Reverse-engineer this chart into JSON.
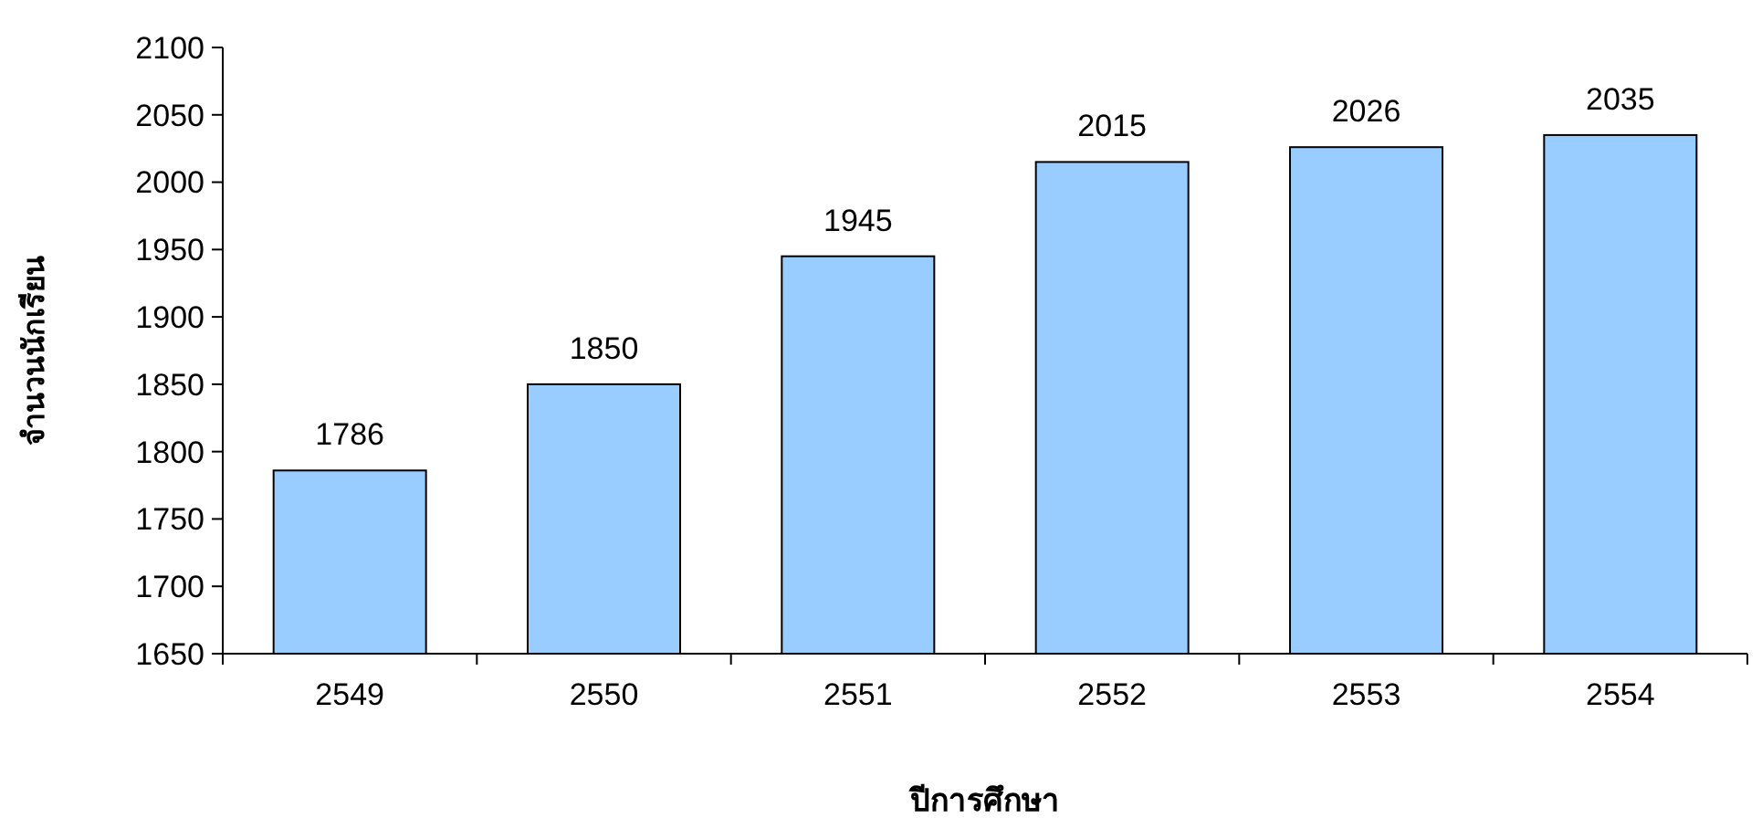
{
  "chart_data": {
    "type": "bar",
    "xlabel": "ปีการศึกษา",
    "ylabel": "จำนวนนักเรียน",
    "categories": [
      "2549",
      "2550",
      "2551",
      "2552",
      "2553",
      "2554"
    ],
    "values": [
      1786,
      1850,
      1945,
      2015,
      2026,
      2035
    ],
    "color": "#99ccff",
    "ylim": [
      1650,
      2100
    ],
    "yticks": [
      1650,
      1700,
      1750,
      1800,
      1850,
      1900,
      1950,
      2000,
      2050,
      2100
    ],
    "data_labels": true
  }
}
